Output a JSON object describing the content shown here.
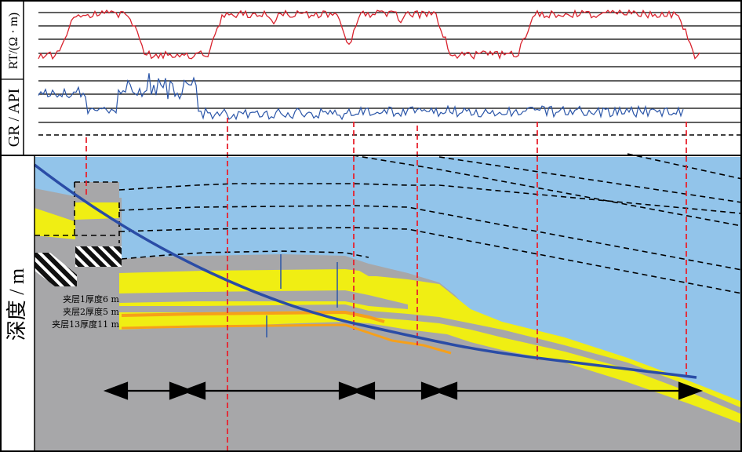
{
  "labels": {
    "rt_axis": "RT/(Ω · m)",
    "gr_axis": "GR / API",
    "depth_axis": "深度 / m"
  },
  "annotations": [
    "夹层1厚度6 m",
    "夹层2厚度5 m",
    "夹层13厚度11 m"
  ],
  "colors": {
    "rt_curve": "#d9232e",
    "gr_curve": "#2a55a8",
    "water": "#92c4ea",
    "shale": "#a7a7a9",
    "sand": "#f0ee13",
    "interlayer": "#f6a01a",
    "well_path": "#2a4ca6",
    "marker": "#e8222d"
  }
}
